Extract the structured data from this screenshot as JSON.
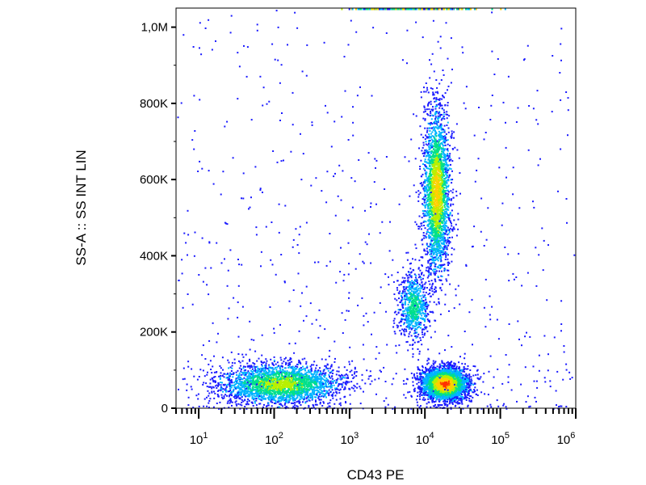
{
  "chart_data": {
    "type": "scatter",
    "subtype": "flow-cytometry density dot plot",
    "title": "",
    "xlabel": "CD43 PE",
    "ylabel": "SS-A :: SS INT LIN",
    "x_scale": "log",
    "y_scale": "linear",
    "xlim": [
      5,
      1000000
    ],
    "ylim": [
      0,
      1050000
    ],
    "grid": false,
    "legend": "none",
    "density_colors": [
      "#1a1aff",
      "#00b4ff",
      "#00e08a",
      "#b8f000",
      "#ffd000",
      "#ff3000"
    ],
    "x_ticks": [
      {
        "base": "10",
        "exp": "1",
        "value": 10
      },
      {
        "base": "10",
        "exp": "2",
        "value": 100
      },
      {
        "base": "10",
        "exp": "3",
        "value": 1000
      },
      {
        "base": "10",
        "exp": "4",
        "value": 10000
      },
      {
        "base": "10",
        "exp": "5",
        "value": 100000
      },
      {
        "base": "10",
        "exp": "6",
        "value": 1000000
      }
    ],
    "y_ticks": [
      {
        "label": "0",
        "value": 0
      },
      {
        "label": "200K",
        "value": 200000
      },
      {
        "label": "400K",
        "value": 400000
      },
      {
        "label": "600K",
        "value": 600000
      },
      {
        "label": "800K",
        "value": 800000
      },
      {
        "label": "1,0M",
        "value": 1000000
      }
    ],
    "populations": [
      {
        "x_center": 120,
        "x_log_sd": 0.42,
        "y_center": 65000,
        "y_sd": 28000,
        "count": 2600,
        "peak_density": 3
      },
      {
        "x_center": 18000,
        "x_log_sd": 0.16,
        "y_center": 65000,
        "y_sd": 22000,
        "count": 3000,
        "peak_density": 5
      },
      {
        "x_center": 7000,
        "x_log_sd": 0.1,
        "y_center": 270000,
        "y_sd": 45000,
        "count": 700,
        "peak_density": 2
      },
      {
        "x_center": 14000,
        "x_log_sd": 0.09,
        "y_center": 570000,
        "y_sd": 110000,
        "count": 2400,
        "peak_density": 4
      }
    ]
  }
}
